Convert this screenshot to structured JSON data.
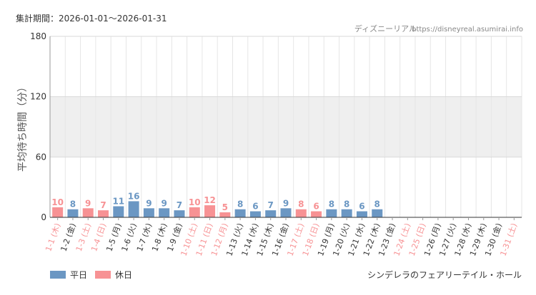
{
  "header": {
    "period_label": "集計期間：2026-01-01〜2026-01-31",
    "site_name": "ディズニーリアル",
    "site_url": "https://disneyreal.asumirai.info"
  },
  "footer": {
    "attraction": "シンデレラのフェアリーテイル・ホール"
  },
  "colors": {
    "weekday": "#6b97c3",
    "holiday": "#f79294",
    "grid": "#e6e6e6",
    "band": "#efefef",
    "axis": "#333333",
    "text": "#333333",
    "muted": "#777777"
  },
  "chart_data": {
    "type": "bar",
    "ylabel": "平均待ち時間（分）",
    "ylim": [
      0,
      180
    ],
    "yticks": [
      0,
      60,
      120,
      180
    ],
    "shaded_band": [
      60,
      120
    ],
    "legend_position": "bottom-left",
    "categories": [
      "1-1 (木)",
      "1-2 (金)",
      "1-3 (土)",
      "1-4 (日)",
      "1-5 (月)",
      "1-6 (火)",
      "1-7 (水)",
      "1-8 (木)",
      "1-9 (金)",
      "1-10 (土)",
      "1-11 (日)",
      "1-12 (月)",
      "1-13 (火)",
      "1-14 (水)",
      "1-15 (木)",
      "1-16 (金)",
      "1-17 (土)",
      "1-18 (日)",
      "1-19 (月)",
      "1-20 (火)",
      "1-21 (水)",
      "1-22 (木)",
      "1-23 (金)",
      "1-24 (土)",
      "1-25 (日)",
      "1-26 (月)",
      "1-27 (火)",
      "1-28 (水)",
      "1-29 (木)",
      "1-30 (金)",
      "1-31 (土)"
    ],
    "day_type": [
      "holiday",
      "weekday",
      "holiday",
      "holiday",
      "weekday",
      "weekday",
      "weekday",
      "weekday",
      "weekday",
      "holiday",
      "holiday",
      "holiday",
      "weekday",
      "weekday",
      "weekday",
      "weekday",
      "holiday",
      "holiday",
      "weekday",
      "weekday",
      "weekday",
      "weekday",
      "weekday",
      "holiday",
      "holiday",
      "weekday",
      "weekday",
      "weekday",
      "weekday",
      "weekday",
      "holiday"
    ],
    "values": [
      10,
      8,
      9,
      7,
      11,
      16,
      9,
      9,
      7,
      10,
      12,
      5,
      8,
      6,
      7,
      9,
      8,
      6,
      8,
      8,
      6,
      8,
      null,
      null,
      null,
      null,
      null,
      null,
      null,
      null,
      null
    ],
    "legend": [
      {
        "key": "weekday",
        "label": "平日"
      },
      {
        "key": "holiday",
        "label": "休日"
      }
    ]
  }
}
